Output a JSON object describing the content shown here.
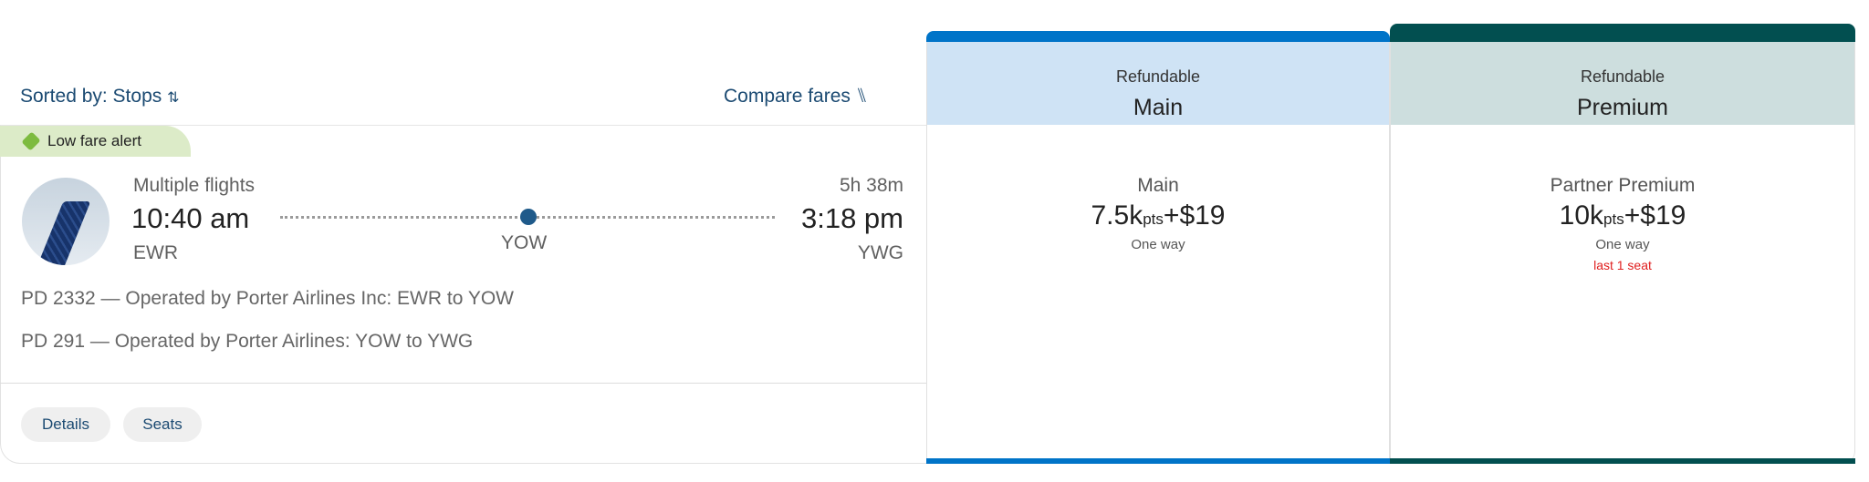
{
  "toolbar": {
    "sort_label": "Sorted by: Stops",
    "compare_label": "Compare fares"
  },
  "flight": {
    "badge": "Low fare alert",
    "type": "Multiple flights",
    "duration": "5h 38m",
    "depart_time": "10:40 am",
    "arrive_time": "3:18 pm",
    "origin": "EWR",
    "stop": "YOW",
    "destination": "YWG",
    "segments": [
      "PD 2332 — Operated by Porter Airlines Inc: EWR to YOW",
      "PD 291 — Operated by Porter Airlines: YOW to YWG"
    ],
    "buttons": {
      "details": "Details",
      "seats": "Seats"
    }
  },
  "fares": [
    {
      "header_sub": "Refundable",
      "header_name": "Main",
      "fare_name": "Main",
      "points": "7.5k",
      "pts_unit": "pts",
      "plus": "+",
      "cash": "$19",
      "trip": "One way",
      "accent": "#0074c8",
      "header_bg": "#cfe3f5"
    },
    {
      "header_sub": "Refundable",
      "header_name": "Premium",
      "fare_name": "Partner Premium",
      "points": "10k",
      "pts_unit": "pts",
      "plus": "+",
      "cash": "$19",
      "trip": "One way",
      "availability": "last 1 seat",
      "accent": "#024f50",
      "header_bg": "#cddede"
    }
  ]
}
